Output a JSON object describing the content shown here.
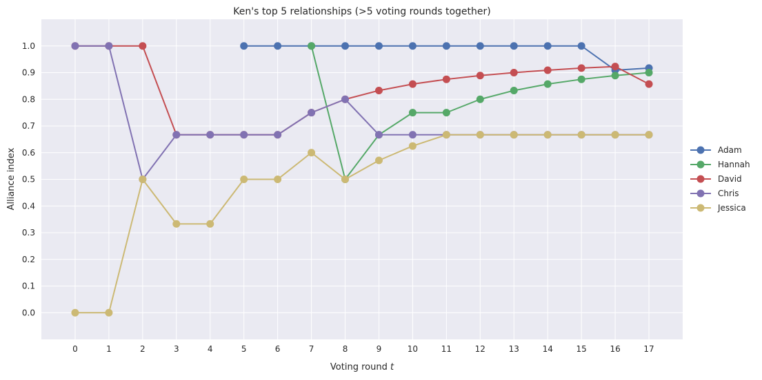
{
  "chart_data": {
    "type": "line",
    "title": "Ken's top 5 relationships (>5 voting rounds together)",
    "xlabel": "Voting round ",
    "xlabel_var": "t",
    "ylabel": "Alliance index",
    "xlim": [
      -1,
      18
    ],
    "ylim": [
      -0.1,
      1.1
    ],
    "xticks": [
      0,
      1,
      2,
      3,
      4,
      5,
      6,
      7,
      8,
      9,
      10,
      11,
      12,
      13,
      14,
      15,
      16,
      17
    ],
    "yticks": [
      "0.0",
      "0.1",
      "0.2",
      "0.3",
      "0.4",
      "0.5",
      "0.6",
      "0.7",
      "0.8",
      "0.9",
      "1.0"
    ],
    "grid": true,
    "legend_position": "right",
    "background": "#eaeaf2",
    "series": [
      {
        "name": "Adam",
        "color": "#4c72b0",
        "x": [
          5,
          6,
          7,
          8,
          9,
          10,
          11,
          12,
          13,
          14,
          15,
          16,
          17
        ],
        "values": [
          1.0,
          1.0,
          1.0,
          1.0,
          1.0,
          1.0,
          1.0,
          1.0,
          1.0,
          1.0,
          1.0,
          0.909,
          0.917
        ]
      },
      {
        "name": "Hannah",
        "color": "#55a868",
        "x": [
          7,
          8,
          9,
          10,
          11,
          12,
          13,
          14,
          15,
          16,
          17
        ],
        "values": [
          1.0,
          0.5,
          0.667,
          0.75,
          0.75,
          0.8,
          0.833,
          0.857,
          0.875,
          0.889,
          0.9
        ]
      },
      {
        "name": "David",
        "color": "#c44e52",
        "x": [
          0,
          1,
          2,
          3,
          4,
          5,
          6,
          7,
          8,
          9,
          10,
          11,
          12,
          13,
          14,
          15,
          16,
          17
        ],
        "values": [
          1.0,
          1.0,
          1.0,
          0.667,
          0.667,
          0.667,
          0.667,
          0.75,
          0.8,
          0.833,
          0.857,
          0.875,
          0.889,
          0.9,
          0.909,
          0.917,
          0.923,
          0.857
        ]
      },
      {
        "name": "Chris",
        "color": "#8172b2",
        "x": [
          0,
          1,
          2,
          3,
          4,
          5,
          6,
          7,
          8,
          9,
          10,
          11,
          12,
          13,
          14,
          15,
          16,
          17
        ],
        "values": [
          1.0,
          1.0,
          0.5,
          0.667,
          0.667,
          0.667,
          0.667,
          0.75,
          0.8,
          0.667,
          0.667,
          0.667,
          0.667,
          0.667,
          0.667,
          0.667,
          0.667,
          0.667
        ]
      },
      {
        "name": "Jessica",
        "color": "#ccb974",
        "x": [
          0,
          1,
          2,
          3,
          4,
          5,
          6,
          7,
          8,
          9,
          10,
          11,
          12,
          13,
          14,
          15,
          16,
          17
        ],
        "values": [
          0.0,
          0.0,
          0.5,
          0.333,
          0.333,
          0.5,
          0.5,
          0.6,
          0.5,
          0.571,
          0.625,
          0.667,
          0.667,
          0.667,
          0.667,
          0.667,
          0.667,
          0.667
        ]
      }
    ]
  }
}
